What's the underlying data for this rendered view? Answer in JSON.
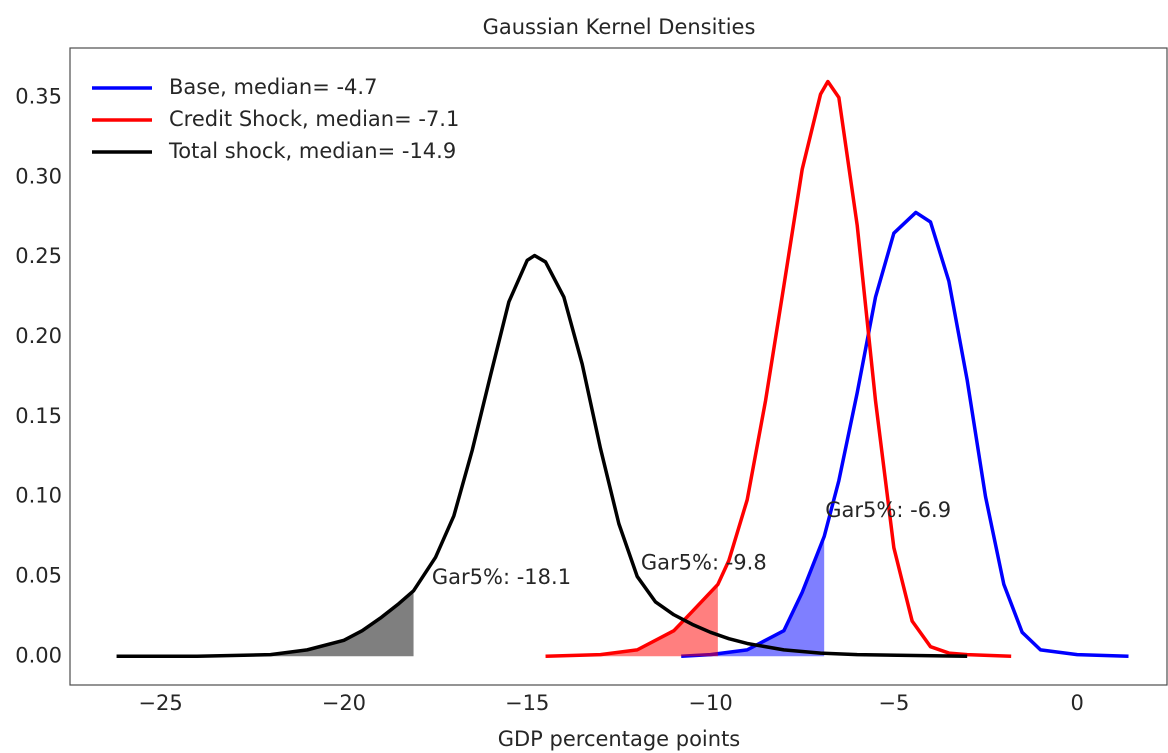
{
  "chart_data": {
    "type": "line",
    "title": "Gaussian Kernel Densities",
    "x_label": "GDP percentage points",
    "xlim": [
      -27.47,
      2.45
    ],
    "ylim": [
      -0.018,
      0.381
    ],
    "xticks": [
      {
        "value": -25,
        "label": "−25"
      },
      {
        "value": -20,
        "label": "−20"
      },
      {
        "value": -15,
        "label": "−15"
      },
      {
        "value": -10,
        "label": "−10"
      },
      {
        "value": -5,
        "label": "−5"
      },
      0
    ],
    "yticks": [
      {
        "value": 0,
        "label": "0.00"
      },
      {
        "value": 0.05,
        "label": "0.05"
      },
      {
        "value": 0.1,
        "label": "0.10"
      },
      {
        "value": 0.15,
        "label": "0.15"
      },
      {
        "value": 0.2,
        "label": "0.20"
      },
      {
        "value": 0.25,
        "label": "0.25"
      },
      {
        "value": 0.3,
        "label": "0.30"
      },
      {
        "value": 0.35,
        "label": "0.35"
      }
    ],
    "grid": false,
    "legend": "upper-left",
    "series": [
      {
        "name": "Base, median= -4.7",
        "color": "#0000ff",
        "gar5": -6.9,
        "x": [
          -10.8,
          -10,
          -9,
          -8,
          -7.5,
          -6.9,
          -6.5,
          -6,
          -5.5,
          -5,
          -4.4,
          -4,
          -3.5,
          -3,
          -2.5,
          -2,
          -1.5,
          -1,
          0,
          1.4
        ],
        "values": [
          0,
          0.001,
          0.004,
          0.016,
          0.04,
          0.075,
          0.11,
          0.165,
          0.225,
          0.265,
          0.278,
          0.272,
          0.235,
          0.173,
          0.1,
          0.045,
          0.015,
          0.004,
          0.001,
          0
        ]
      },
      {
        "name": "Credit Shock, median= -7.1",
        "color": "#ff0000",
        "gar5": -9.8,
        "x": [
          -14.5,
          -13,
          -12,
          -11,
          -10.5,
          -9.8,
          -9.5,
          -9,
          -8.5,
          -8,
          -7.5,
          -7,
          -6.8,
          -6.5,
          -6,
          -5.5,
          -5,
          -4.5,
          -4,
          -3.5,
          -3,
          -1.8
        ],
        "values": [
          0,
          0.001,
          0.004,
          0.016,
          0.028,
          0.045,
          0.06,
          0.098,
          0.16,
          0.232,
          0.305,
          0.352,
          0.36,
          0.35,
          0.27,
          0.16,
          0.068,
          0.022,
          0.006,
          0.002,
          0.001,
          0
        ]
      },
      {
        "name": "Total shock, median= -14.9",
        "color": "#000000",
        "gar5": -18.1,
        "x": [
          -26.2,
          -24,
          -22,
          -21,
          -20,
          -19.5,
          -19,
          -18.5,
          -18.1,
          -17.5,
          -17,
          -16.5,
          -16,
          -15.5,
          -15,
          -14.8,
          -14.5,
          -14,
          -13.5,
          -13,
          -12.5,
          -12,
          -11.5,
          -11,
          -10.5,
          -10,
          -9.5,
          -9,
          -8,
          -7,
          -6,
          -3
        ],
        "values": [
          0,
          0,
          0.001,
          0.004,
          0.01,
          0.016,
          0.024,
          0.033,
          0.041,
          0.062,
          0.088,
          0.129,
          0.176,
          0.222,
          0.248,
          0.251,
          0.247,
          0.225,
          0.183,
          0.13,
          0.083,
          0.05,
          0.034,
          0.026,
          0.02,
          0.015,
          0.011,
          0.008,
          0.004,
          0.002,
          0.001,
          0
        ]
      }
    ],
    "annotations": [
      {
        "text": "Gar5%: -18.1",
        "x": -17.6,
        "y": 0.049
      },
      {
        "text": "Gar5%: -9.8",
        "x": -11.9,
        "y": 0.058
      },
      {
        "text": "Gar5%: -6.9",
        "x": -6.87,
        "y": 0.091
      }
    ]
  }
}
